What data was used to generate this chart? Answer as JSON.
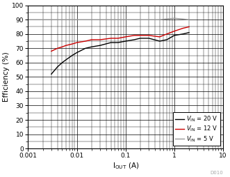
{
  "title": "",
  "xlabel": "I$_\\mathrm{OUT}$ (A)",
  "ylabel": "Efficiency (%)",
  "xlim": [
    0.001,
    10
  ],
  "ylim": [
    0,
    100
  ],
  "yticks": [
    0,
    10,
    20,
    30,
    40,
    50,
    60,
    70,
    80,
    90,
    100
  ],
  "background_color": "#ffffff",
  "legend_entries": [
    "$V_{\\mathrm{IN}}$ = 20 V",
    "$V_{\\mathrm{IN}}$ = 12 V",
    "$V_{\\mathrm{IN}}$ = 5 V"
  ],
  "line_colors": [
    "#000000",
    "#cc0000",
    "#999999"
  ],
  "line_styles": [
    "-",
    "-",
    "-"
  ],
  "vin20_x": [
    0.003,
    0.004,
    0.005,
    0.006,
    0.008,
    0.01,
    0.015,
    0.02,
    0.03,
    0.05,
    0.07,
    0.1,
    0.15,
    0.2,
    0.3,
    0.5,
    0.7,
    1.0,
    1.5,
    2.0
  ],
  "vin20_y": [
    52,
    57,
    60,
    62,
    65,
    67,
    70,
    71,
    72,
    74,
    74,
    75,
    76,
    77,
    77,
    75,
    76,
    79,
    80,
    81
  ],
  "vin12_x": [
    0.003,
    0.004,
    0.005,
    0.006,
    0.008,
    0.01,
    0.015,
    0.02,
    0.03,
    0.05,
    0.07,
    0.1,
    0.15,
    0.2,
    0.3,
    0.5,
    0.7,
    1.0,
    1.5,
    2.0
  ],
  "vin12_y": [
    68,
    70,
    71,
    72,
    73,
    74,
    75,
    76,
    76,
    77,
    77,
    78,
    79,
    79,
    79,
    78,
    80,
    82,
    84,
    85
  ],
  "vin5_x": [
    0.001,
    0.003,
    0.005,
    0.007,
    0.01,
    0.02,
    0.05,
    0.1,
    0.2,
    0.5,
    1.0,
    2.0
  ],
  "vin5_y": [
    90,
    90,
    90,
    90,
    90,
    90,
    90,
    90,
    90,
    90,
    91,
    90
  ],
  "watermark": "D010",
  "watermark_color": "#aaaaaa"
}
